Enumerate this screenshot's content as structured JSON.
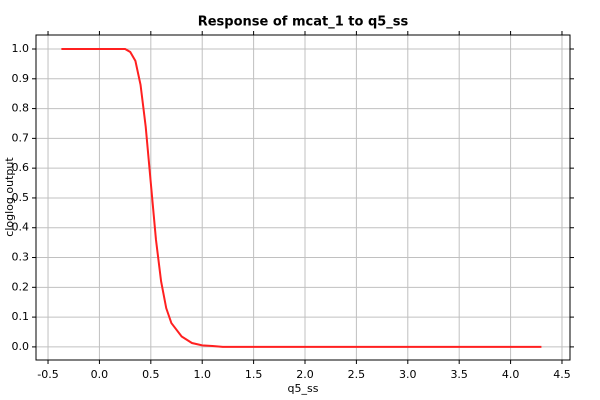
{
  "chart_data": {
    "type": "line",
    "title": "Response of mcat_1 to q5_ss",
    "xlabel": "q5_ss",
    "ylabel": "cloglog output",
    "x": [
      -0.37,
      0.0,
      0.25,
      0.3,
      0.35,
      0.4,
      0.45,
      0.5,
      0.55,
      0.6,
      0.65,
      0.7,
      0.8,
      0.9,
      1.0,
      1.1,
      1.2,
      2.0,
      3.0,
      4.3
    ],
    "series": [
      {
        "name": "mcat_1",
        "color": "#ff2020",
        "values": [
          1.0,
          1.0,
          1.0,
          0.99,
          0.96,
          0.88,
          0.74,
          0.55,
          0.36,
          0.22,
          0.13,
          0.08,
          0.035,
          0.013,
          0.005,
          0.003,
          0.0,
          0.0,
          0.0,
          0.0
        ]
      }
    ],
    "xlim": [
      -0.617,
      4.578
    ],
    "ylim": [
      -0.044,
      1.047
    ],
    "xticks": [
      -0.5,
      {
        "value": 0,
        "label": "0.0"
      },
      0.5,
      {
        "value": 1,
        "label": "1.0"
      },
      1.5,
      {
        "value": 2,
        "label": "2.0"
      },
      2.5,
      {
        "value": 3,
        "label": "3.0"
      },
      3.5,
      {
        "value": 4,
        "label": "4.0"
      },
      4.5
    ],
    "yticks": [
      {
        "value": 0,
        "label": "0.0"
      },
      0.1,
      0.2,
      0.3,
      0.4,
      0.5,
      0.6,
      0.7,
      0.8,
      0.9,
      {
        "value": 1,
        "label": "1.0"
      }
    ],
    "grid": true
  }
}
